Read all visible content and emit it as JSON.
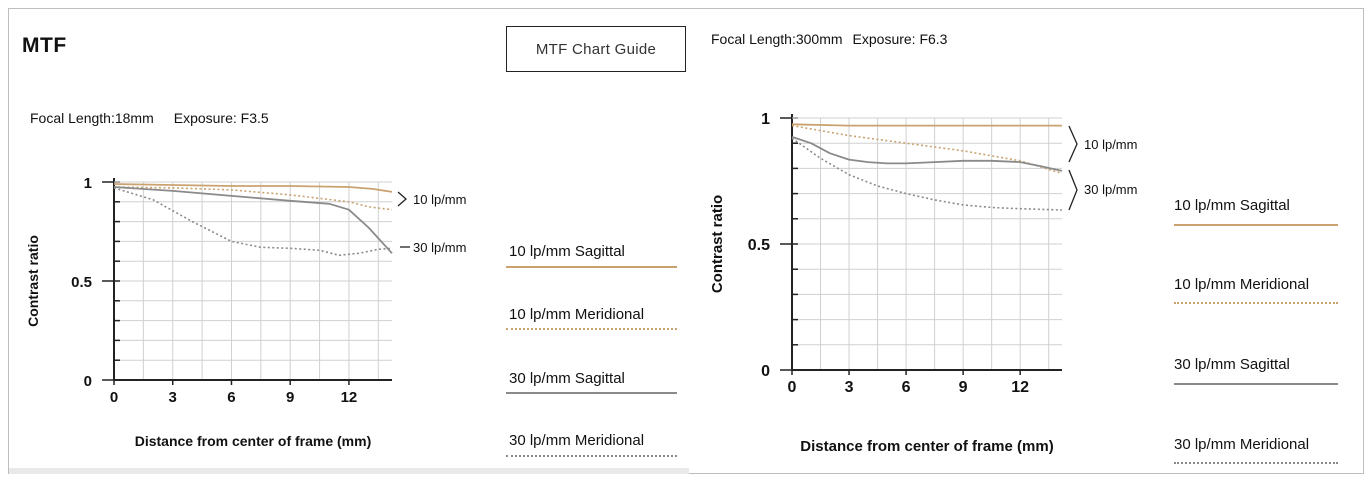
{
  "page": {
    "title": "MTF",
    "guide_button": "MTF Chart Guide"
  },
  "colors": {
    "sagittal_10": "#c9a270",
    "meridional_10": "#c9a270",
    "sagittal_30": "#8a8a8a",
    "meridional_30": "#8a8a8a",
    "grid": "#d0d0d0",
    "axis": "#222222"
  },
  "chart_data": [
    {
      "type": "line",
      "caption": {
        "focal": "Focal Length:18mm",
        "exposure": "Exposure: F3.5"
      },
      "ylabel": "Contrast ratio",
      "xlabel": "Distance from center of frame (mm)",
      "xlim": [
        0,
        14.2
      ],
      "ylim": [
        0,
        1
      ],
      "xticks": [
        "0",
        "3",
        "6",
        "9",
        "12"
      ],
      "yticks": [
        "0",
        "0.5",
        "1"
      ],
      "annotations": [
        "10 lp/mm",
        "30 lp/mm"
      ],
      "series": [
        {
          "name": "10 lp/mm Sagittal",
          "style": "solid",
          "color": "#c9a270",
          "x": [
            0,
            3,
            6,
            9,
            12,
            13.2,
            14.2
          ],
          "y": [
            0.99,
            0.985,
            0.98,
            0.98,
            0.975,
            0.965,
            0.95
          ]
        },
        {
          "name": "10 lp/mm Meridional",
          "style": "dotted",
          "color": "#c9a270",
          "x": [
            0,
            3,
            6,
            9,
            12,
            13,
            14.2
          ],
          "y": [
            0.975,
            0.97,
            0.96,
            0.935,
            0.9,
            0.875,
            0.86
          ]
        },
        {
          "name": "30 lp/mm Sagittal",
          "style": "solid",
          "color": "#8a8a8a",
          "x": [
            0,
            3,
            6,
            9,
            11,
            12,
            13,
            14.2
          ],
          "y": [
            0.975,
            0.955,
            0.93,
            0.905,
            0.89,
            0.86,
            0.77,
            0.64
          ]
        },
        {
          "name": "30 lp/mm Meridional",
          "style": "dotted",
          "color": "#8a8a8a",
          "x": [
            0,
            2,
            4,
            6,
            7.5,
            9,
            10.5,
            11.5,
            12.5,
            13.5,
            14.2
          ],
          "y": [
            0.97,
            0.91,
            0.8,
            0.7,
            0.67,
            0.665,
            0.655,
            0.63,
            0.64,
            0.66,
            0.665
          ]
        }
      ]
    },
    {
      "type": "line",
      "caption": {
        "focal": "Focal Length:300mm",
        "exposure": "Exposure: F6.3"
      },
      "ylabel": "Contrast ratio",
      "xlabel": "Distance from center of frame (mm)",
      "xlim": [
        0,
        14.2
      ],
      "ylim": [
        0,
        1
      ],
      "xticks": [
        "0",
        "3",
        "6",
        "9",
        "12"
      ],
      "yticks": [
        "0",
        "0.5",
        "1"
      ],
      "annotations": [
        "10 lp/mm",
        "30 lp/mm"
      ],
      "series": [
        {
          "name": "10 lp/mm Sagittal",
          "style": "solid",
          "color": "#c9a270",
          "x": [
            0,
            3,
            6,
            9,
            12,
            14.2
          ],
          "y": [
            0.975,
            0.97,
            0.97,
            0.97,
            0.97,
            0.97
          ]
        },
        {
          "name": "10 lp/mm Meridional",
          "style": "dotted",
          "color": "#c9a270",
          "x": [
            0,
            3,
            6,
            9,
            12,
            14.2
          ],
          "y": [
            0.97,
            0.93,
            0.9,
            0.87,
            0.83,
            0.78
          ]
        },
        {
          "name": "30 lp/mm Sagittal",
          "style": "solid",
          "color": "#8a8a8a",
          "x": [
            0,
            1,
            2,
            3,
            4,
            5,
            6,
            7.5,
            9,
            10.5,
            12,
            13,
            14.2
          ],
          "y": [
            0.925,
            0.9,
            0.86,
            0.835,
            0.825,
            0.82,
            0.82,
            0.825,
            0.83,
            0.83,
            0.825,
            0.81,
            0.79
          ]
        },
        {
          "name": "30 lp/mm Meridional",
          "style": "dotted",
          "color": "#8a8a8a",
          "x": [
            0,
            1.5,
            3,
            4.5,
            6,
            7.5,
            9,
            10.5,
            12,
            14.2
          ],
          "y": [
            0.92,
            0.84,
            0.775,
            0.73,
            0.7,
            0.675,
            0.655,
            0.645,
            0.64,
            0.635
          ]
        }
      ]
    }
  ],
  "legend_items": [
    "10 lp/mm Sagittal",
    "10 lp/mm Meridional",
    "30 lp/mm Sagittal",
    "30 lp/mm Meridional"
  ]
}
